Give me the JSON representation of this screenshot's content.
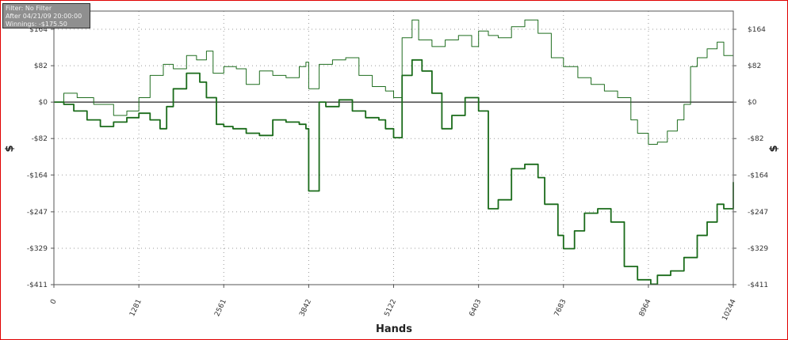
{
  "info_box": {
    "filter": "Filter: No Filter",
    "after": "After 04/21/09 20:00:00",
    "winnings": "Winnings: -$175.50"
  },
  "colors": {
    "frame": "#e00000",
    "line_dark": "#1a6b1a",
    "line_light": "#1f6d1f",
    "grid": "#9a9a9a"
  },
  "chart_data": {
    "type": "line",
    "xlabel": "Hands",
    "ylabel": "$",
    "xlim": [
      0,
      10244
    ],
    "ylim": [
      -411,
      205
    ],
    "x_ticks": [
      {
        "value": 0,
        "label": "0"
      },
      {
        "value": 1281,
        "label": "1281"
      },
      {
        "value": 2561,
        "label": "2561"
      },
      {
        "value": 3842,
        "label": "3842"
      },
      {
        "value": 5122,
        "label": "5122"
      },
      {
        "value": 6403,
        "label": "6403"
      },
      {
        "value": 7683,
        "label": "7683"
      },
      {
        "value": 8964,
        "label": "8964"
      },
      {
        "value": 10244,
        "label": "10244"
      }
    ],
    "y_ticks": [
      {
        "value": 164,
        "label": "$164"
      },
      {
        "value": 82,
        "label": "$82"
      },
      {
        "value": 0,
        "label": "$0"
      },
      {
        "value": -82,
        "label": "-$82"
      },
      {
        "value": -164,
        "label": "-$164"
      },
      {
        "value": -247,
        "label": "-$247"
      },
      {
        "value": -329,
        "label": "-$329"
      },
      {
        "value": -411,
        "label": "-$411"
      }
    ],
    "grid": true,
    "series": [
      {
        "x": [
          0,
          150,
          350,
          600,
          900,
          1100,
          1281,
          1450,
          1650,
          1800,
          2000,
          2150,
          2300,
          2400,
          2561,
          2750,
          2900,
          3100,
          3300,
          3500,
          3700,
          3800,
          3842,
          4000,
          4200,
          4400,
          4600,
          4800,
          5000,
          5122,
          5250,
          5400,
          5500,
          5700,
          5900,
          6100,
          6300,
          6403,
          6550,
          6700,
          6900,
          7100,
          7300,
          7500,
          7683,
          7900,
          8100,
          8300,
          8500,
          8700,
          8800,
          8964,
          9100,
          9250,
          9400,
          9500,
          9600,
          9700,
          9850,
          10000,
          10100,
          10244
        ],
        "y": [
          0,
          20,
          10,
          -5,
          -30,
          -20,
          10,
          60,
          85,
          75,
          105,
          95,
          115,
          65,
          80,
          75,
          40,
          70,
          60,
          55,
          80,
          90,
          30,
          85,
          95,
          100,
          60,
          35,
          25,
          10,
          145,
          185,
          140,
          125,
          140,
          150,
          125,
          160,
          150,
          145,
          170,
          185,
          155,
          100,
          80,
          55,
          40,
          25,
          10,
          -40,
          -70,
          -95,
          -90,
          -65,
          -40,
          -5,
          80,
          100,
          120,
          135,
          105,
          150
        ]
      },
      {
        "x": [
          0,
          150,
          300,
          500,
          700,
          900,
          1100,
          1281,
          1450,
          1600,
          1700,
          1800,
          2000,
          2200,
          2300,
          2450,
          2561,
          2700,
          2900,
          3100,
          3300,
          3500,
          3700,
          3800,
          3842,
          4000,
          4100,
          4300,
          4500,
          4700,
          4900,
          5000,
          5122,
          5250,
          5400,
          5550,
          5700,
          5850,
          6000,
          6200,
          6403,
          6550,
          6700,
          6900,
          7100,
          7300,
          7400,
          7600,
          7683,
          7850,
          8000,
          8200,
          8400,
          8600,
          8800,
          9000,
          9100,
          9300,
          9500,
          9700,
          9850,
          10000,
          10100,
          10244
        ],
        "y": [
          0,
          -5,
          -20,
          -40,
          -55,
          -45,
          -35,
          -25,
          -40,
          -60,
          -10,
          30,
          65,
          45,
          10,
          -50,
          -55,
          -60,
          -70,
          -75,
          -40,
          -45,
          -50,
          -60,
          -200,
          0,
          -10,
          5,
          -20,
          -35,
          -40,
          -60,
          -80,
          60,
          95,
          70,
          20,
          -60,
          -30,
          10,
          -20,
          -240,
          -220,
          -150,
          -140,
          -170,
          -230,
          -300,
          -330,
          -290,
          -250,
          -240,
          -270,
          -370,
          -400,
          -410,
          -390,
          -380,
          -350,
          -300,
          -270,
          -230,
          -240,
          -180
        ]
      }
    ]
  }
}
